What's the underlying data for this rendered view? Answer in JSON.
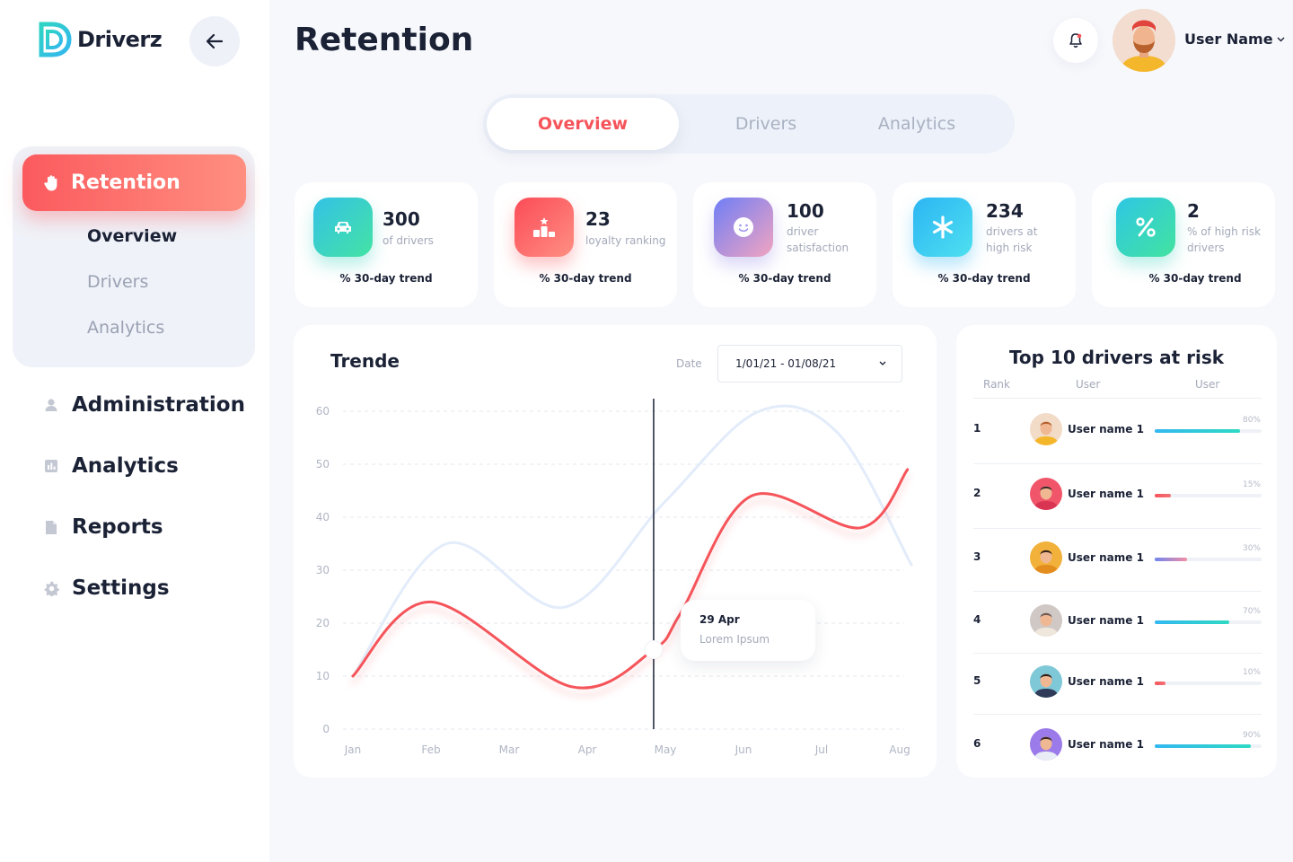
{
  "app": {
    "name": "Driverz"
  },
  "sidebar": {
    "retention_label": "Retention",
    "sub_items": [
      "Overview",
      "Drivers",
      "Analytics"
    ],
    "items": [
      {
        "label": "Administration",
        "icon": "user-icon"
      },
      {
        "label": "Analytics",
        "icon": "bar-chart-icon"
      },
      {
        "label": "Reports",
        "icon": "document-icon"
      },
      {
        "label": "Settings",
        "icon": "gear-icon"
      }
    ]
  },
  "header": {
    "title": "Retention",
    "user_name": "User Name"
  },
  "tabs": [
    "Overview",
    "Drivers",
    "Analytics"
  ],
  "stats": [
    {
      "value": "300",
      "desc": "of drivers",
      "trend": "% 30-day trend",
      "icon": "car-icon"
    },
    {
      "value": "23",
      "desc": "loyalty ranking",
      "trend": "% 30-day trend",
      "icon": "podium-icon"
    },
    {
      "value": "100",
      "desc": "driver satisfaction",
      "trend": "% 30-day trend",
      "icon": "smile-icon"
    },
    {
      "value": "234",
      "desc": "drivers at high risk",
      "trend": "% 30-day trend",
      "icon": "asterisk-icon"
    },
    {
      "value": "2",
      "desc": "% of high risk drivers",
      "trend": "% 30-day trend",
      "icon": "percent-icon"
    }
  ],
  "trend_card": {
    "title": "Trende",
    "date_label": "Date",
    "date_range": "1/01/21 - 01/08/21",
    "tooltip": {
      "date": "29 Apr",
      "text": "Lorem Ipsum"
    }
  },
  "chart_data": {
    "type": "line",
    "x": [
      "Jan",
      "Feb",
      "Mar",
      "Apr",
      "May",
      "Jun",
      "Jul",
      "Aug"
    ],
    "yticks": [
      0,
      10,
      20,
      30,
      40,
      50,
      60
    ],
    "ylim": [
      0,
      60
    ],
    "grid": true,
    "series": [
      {
        "color": "#e3ecfa",
        "points": [
          [
            0,
            10
          ],
          [
            1.2,
            35
          ],
          [
            2.7,
            23
          ],
          [
            4.0,
            43
          ],
          [
            5.2,
            60
          ],
          [
            6.2,
            56
          ],
          [
            7.15,
            31
          ]
        ]
      },
      {
        "color": "#f5545a",
        "points": [
          [
            0,
            10
          ],
          [
            1.0,
            24
          ],
          [
            2.8,
            8
          ],
          [
            3.85,
            15
          ],
          [
            4.2,
            22
          ],
          [
            5.1,
            44
          ],
          [
            6.5,
            38
          ],
          [
            7.1,
            49
          ]
        ]
      }
    ],
    "highlight_x": 3.85
  },
  "risk": {
    "title": "Top 10 drivers at risk",
    "headers": [
      "Rank",
      "User",
      "User"
    ],
    "rows": [
      {
        "rank": "1",
        "name": "User name 1",
        "pct": "80%",
        "value": 0.8,
        "color": "#2ed9c3"
      },
      {
        "rank": "2",
        "name": "User name 1",
        "pct": "15%",
        "value": 0.15,
        "color": "#f5545a"
      },
      {
        "rank": "3",
        "name": "User name 1",
        "pct": "30%",
        "value": 0.3,
        "color": "#8f8cf2"
      },
      {
        "rank": "4",
        "name": "User name 1",
        "pct": "70%",
        "value": 0.7,
        "color": "#33b8f0"
      },
      {
        "rank": "5",
        "name": "User name 1",
        "pct": "10%",
        "value": 0.1,
        "color": "#f5545a"
      },
      {
        "rank": "6",
        "name": "User name 1",
        "pct": "90%",
        "value": 0.9,
        "color": "#2ed9c3"
      }
    ]
  }
}
